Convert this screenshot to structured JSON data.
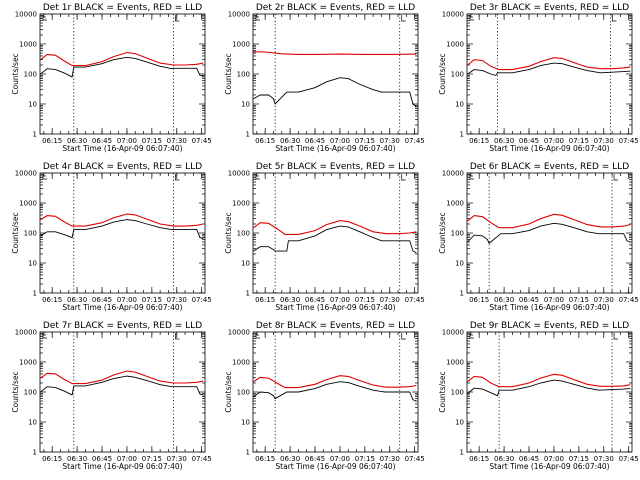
{
  "colors": {
    "events": "#000000",
    "lld": "#e00000",
    "background": "#ffffff"
  },
  "chart_data": [
    {
      "type": "line",
      "title": "Det 1r BLACK = Events, RED = LLD",
      "xlabel": "Start Time (16-Apr-09 06:07:40)",
      "ylabel": "Counts/sec",
      "y_scale": "log",
      "ylim": [
        1,
        10000
      ],
      "y_ticks": [
        "1",
        "10",
        "100",
        "1000",
        "10000"
      ],
      "x_ticks": [
        "06:15",
        "06:30",
        "06:45",
        "07:00",
        "07:15",
        "07:30",
        "07:45"
      ],
      "xlim": [
        "06:07:40",
        "07:47"
      ],
      "vertical_lines": [
        "06:28",
        "07:28"
      ],
      "series": [
        {
          "name": "BLACK = Events",
          "x": [
            "06:08",
            "06:12",
            "06:17",
            "06:22",
            "06:27",
            "06:28",
            "06:35",
            "06:45",
            "06:52",
            "07:00",
            "07:05",
            "07:12",
            "07:20",
            "07:27",
            "07:28",
            "07:35",
            "07:42",
            "07:44",
            "07:46"
          ],
          "y": [
            100,
            150,
            140,
            110,
            80,
            170,
            170,
            220,
            300,
            360,
            330,
            250,
            180,
            150,
            155,
            155,
            155,
            90,
            85
          ]
        },
        {
          "name": "RED = LLD",
          "x": [
            "06:08",
            "06:12",
            "06:17",
            "06:22",
            "06:27",
            "06:35",
            "06:45",
            "06:52",
            "07:00",
            "07:05",
            "07:12",
            "07:20",
            "07:28",
            "07:35",
            "07:42",
            "07:46"
          ],
          "y": [
            300,
            450,
            420,
            280,
            190,
            190,
            260,
            380,
            520,
            480,
            340,
            230,
            200,
            200,
            210,
            230
          ]
        }
      ]
    },
    {
      "type": "line",
      "title": "Det 2r BLACK = Events, RED = LLD",
      "xlabel": "Start Time (16-Apr-09 06:07:40)",
      "ylabel": "Counts/sec",
      "y_scale": "log",
      "ylim": [
        1,
        10000
      ],
      "y_ticks": [
        "1",
        "10",
        "100",
        "1000",
        "10000"
      ],
      "x_ticks": [
        "06:15",
        "06:30",
        "06:45",
        "07:00",
        "07:15",
        "07:30",
        "07:45"
      ],
      "xlim": [
        "06:07:40",
        "07:47"
      ],
      "vertical_lines": [
        "06:21",
        "07:36"
      ],
      "series": [
        {
          "name": "BLACK = Events",
          "x": [
            "06:08",
            "06:12",
            "06:17",
            "06:20",
            "06:21",
            "06:28",
            "06:35",
            "06:45",
            "06:52",
            "07:00",
            "07:05",
            "07:12",
            "07:20",
            "07:25",
            "07:26",
            "07:35",
            "07:42",
            "07:44",
            "07:46"
          ],
          "y": [
            15,
            20,
            20,
            15,
            10,
            25,
            25,
            35,
            55,
            75,
            70,
            45,
            30,
            25,
            25,
            25,
            25,
            10,
            8
          ]
        },
        {
          "name": "RED = LLD",
          "x": [
            "06:08",
            "06:15",
            "06:25",
            "06:35",
            "06:45",
            "07:00",
            "07:15",
            "07:30",
            "07:46"
          ],
          "y": [
            550,
            540,
            470,
            450,
            450,
            460,
            450,
            450,
            460
          ]
        }
      ]
    },
    {
      "type": "line",
      "title": "Det 3r BLACK = Events, RED = LLD",
      "xlabel": "Start Time (16-Apr-09 06:07:40)",
      "ylabel": "Counts/sec",
      "y_scale": "log",
      "ylim": [
        1,
        10000
      ],
      "y_ticks": [
        "1",
        "10",
        "100",
        "1000",
        "10000"
      ],
      "x_ticks": [
        "06:15",
        "06:30",
        "06:45",
        "07:00",
        "07:15",
        "07:30",
        "07:45"
      ],
      "xlim": [
        "06:07:40",
        "07:47"
      ],
      "vertical_lines": [
        "06:26",
        "07:34"
      ],
      "series": [
        {
          "name": "BLACK = Events",
          "x": [
            "06:08",
            "06:12",
            "06:17",
            "06:22",
            "06:25",
            "06:26",
            "06:35",
            "06:45",
            "06:52",
            "07:00",
            "07:05",
            "07:12",
            "07:20",
            "07:28",
            "07:35",
            "07:42",
            "07:46"
          ],
          "y": [
            100,
            140,
            130,
            100,
            90,
            110,
            110,
            140,
            190,
            230,
            220,
            170,
            130,
            110,
            115,
            120,
            125
          ]
        },
        {
          "name": "RED = LLD",
          "x": [
            "06:08",
            "06:12",
            "06:17",
            "06:22",
            "06:27",
            "06:35",
            "06:45",
            "06:52",
            "07:00",
            "07:05",
            "07:12",
            "07:20",
            "07:28",
            "07:35",
            "07:42",
            "07:46"
          ],
          "y": [
            200,
            300,
            280,
            180,
            140,
            140,
            180,
            260,
            350,
            330,
            240,
            170,
            150,
            150,
            160,
            170
          ]
        }
      ]
    },
    {
      "type": "line",
      "title": "Det 4r BLACK = Events, RED = LLD",
      "xlabel": "Start Time (16-Apr-09 06:07:40)",
      "ylabel": "Counts/sec",
      "y_scale": "log",
      "ylim": [
        1,
        10000
      ],
      "y_ticks": [
        "1",
        "10",
        "100",
        "1000",
        "10000"
      ],
      "x_ticks": [
        "06:15",
        "06:30",
        "06:45",
        "07:00",
        "07:15",
        "07:30",
        "07:45"
      ],
      "xlim": [
        "06:07:40",
        "07:47"
      ],
      "vertical_lines": [
        "06:28",
        "07:28"
      ],
      "series": [
        {
          "name": "BLACK = Events",
          "x": [
            "06:08",
            "06:12",
            "06:17",
            "06:22",
            "06:27",
            "06:28",
            "06:35",
            "06:45",
            "06:52",
            "07:00",
            "07:05",
            "07:12",
            "07:20",
            "07:27",
            "07:28",
            "07:35",
            "07:42",
            "07:44",
            "07:46"
          ],
          "y": [
            80,
            110,
            110,
            90,
            70,
            130,
            130,
            170,
            230,
            280,
            260,
            200,
            150,
            130,
            130,
            130,
            130,
            70,
            65
          ]
        },
        {
          "name": "RED = LLD",
          "x": [
            "06:08",
            "06:12",
            "06:17",
            "06:22",
            "06:27",
            "06:35",
            "06:45",
            "06:52",
            "07:00",
            "07:05",
            "07:12",
            "07:20",
            "07:28",
            "07:35",
            "07:42",
            "07:46"
          ],
          "y": [
            280,
            380,
            360,
            240,
            170,
            170,
            220,
            320,
            430,
            400,
            290,
            200,
            170,
            170,
            180,
            200
          ]
        }
      ]
    },
    {
      "type": "line",
      "title": "Det 5r BLACK = Events, RED = LLD",
      "xlabel": "Start Time (16-Apr-09 06:07:40)",
      "ylabel": "Counts/sec",
      "y_scale": "log",
      "ylim": [
        1,
        10000
      ],
      "y_ticks": [
        "1",
        "10",
        "100",
        "1000",
        "10000"
      ],
      "x_ticks": [
        "06:15",
        "06:30",
        "06:45",
        "07:00",
        "07:15",
        "07:30",
        "07:45"
      ],
      "xlim": [
        "06:07:40",
        "07:47"
      ],
      "vertical_lines": [
        "06:21",
        "07:36"
      ],
      "series": [
        {
          "name": "BLACK = Events",
          "x": [
            "06:08",
            "06:12",
            "06:17",
            "06:20",
            "06:21",
            "06:28",
            "06:29",
            "06:35",
            "06:45",
            "06:52",
            "07:00",
            "07:05",
            "07:12",
            "07:20",
            "07:25",
            "07:26",
            "07:35",
            "07:42",
            "07:44",
            "07:46"
          ],
          "y": [
            25,
            35,
            35,
            28,
            25,
            25,
            55,
            55,
            80,
            130,
            170,
            160,
            110,
            70,
            55,
            55,
            55,
            55,
            25,
            22
          ]
        },
        {
          "name": "RED = LLD",
          "x": [
            "06:08",
            "06:12",
            "06:17",
            "06:22",
            "06:27",
            "06:35",
            "06:45",
            "06:52",
            "07:00",
            "07:05",
            "07:12",
            "07:20",
            "07:28",
            "07:35",
            "07:42",
            "07:46"
          ],
          "y": [
            150,
            220,
            210,
            140,
            90,
            90,
            120,
            190,
            260,
            240,
            170,
            110,
            95,
            95,
            100,
            110
          ]
        }
      ]
    },
    {
      "type": "line",
      "title": "Det 6r BLACK = Events, RED = LLD",
      "xlabel": "Start Time (16-Apr-09 06:07:40)",
      "ylabel": "Counts/sec",
      "y_scale": "log",
      "ylim": [
        1,
        10000
      ],
      "y_ticks": [
        "1",
        "10",
        "100",
        "1000",
        "10000"
      ],
      "x_ticks": [
        "06:15",
        "06:30",
        "06:45",
        "07:00",
        "07:15",
        "07:30",
        "07:45"
      ],
      "xlim": [
        "06:07:40",
        "07:47"
      ],
      "vertical_lines": [
        "06:21",
        "07:35"
      ],
      "series": [
        {
          "name": "BLACK = Events",
          "x": [
            "06:08",
            "06:12",
            "06:17",
            "06:20",
            "06:21",
            "06:28",
            "06:35",
            "06:45",
            "06:52",
            "07:00",
            "07:05",
            "07:12",
            "07:20",
            "07:27",
            "07:28",
            "07:35",
            "07:42",
            "07:44",
            "07:46"
          ],
          "y": [
            50,
            85,
            80,
            60,
            45,
            95,
            95,
            120,
            170,
            210,
            195,
            150,
            110,
            95,
            95,
            95,
            95,
            55,
            50
          ]
        },
        {
          "name": "RED = LLD",
          "x": [
            "06:08",
            "06:12",
            "06:17",
            "06:22",
            "06:27",
            "06:35",
            "06:45",
            "06:52",
            "07:00",
            "07:05",
            "07:12",
            "07:20",
            "07:28",
            "07:35",
            "07:42",
            "07:46"
          ],
          "y": [
            250,
            380,
            350,
            220,
            150,
            150,
            200,
            300,
            420,
            390,
            280,
            190,
            160,
            160,
            170,
            190
          ]
        }
      ]
    },
    {
      "type": "line",
      "title": "Det 7r BLACK = Events, RED = LLD",
      "xlabel": "Start Time (16-Apr-09 06:07:40)",
      "ylabel": "Counts/sec",
      "y_scale": "log",
      "ylim": [
        1,
        10000
      ],
      "y_ticks": [
        "1",
        "10",
        "100",
        "1000",
        "10000"
      ],
      "x_ticks": [
        "06:15",
        "06:30",
        "06:45",
        "07:00",
        "07:15",
        "07:30",
        "07:45"
      ],
      "xlim": [
        "06:07:40",
        "07:47"
      ],
      "vertical_lines": [
        "06:28",
        "07:28"
      ],
      "series": [
        {
          "name": "BLACK = Events",
          "x": [
            "06:08",
            "06:12",
            "06:17",
            "06:22",
            "06:27",
            "06:28",
            "06:35",
            "06:45",
            "06:52",
            "07:00",
            "07:05",
            "07:12",
            "07:20",
            "07:27",
            "07:28",
            "07:35",
            "07:42",
            "07:44",
            "07:46"
          ],
          "y": [
            100,
            150,
            140,
            110,
            80,
            160,
            160,
            210,
            280,
            340,
            310,
            240,
            175,
            150,
            150,
            150,
            150,
            85,
            80
          ]
        },
        {
          "name": "RED = LLD",
          "x": [
            "06:08",
            "06:12",
            "06:17",
            "06:22",
            "06:27",
            "06:35",
            "06:45",
            "06:52",
            "07:00",
            "07:05",
            "07:12",
            "07:20",
            "07:28",
            "07:35",
            "07:42",
            "07:46"
          ],
          "y": [
            290,
            420,
            400,
            270,
            190,
            190,
            250,
            370,
            500,
            460,
            330,
            230,
            200,
            200,
            210,
            230
          ]
        }
      ]
    },
    {
      "type": "line",
      "title": "Det 8r BLACK = Events, RED = LLD",
      "xlabel": "Start Time (16-Apr-09 06:07:40)",
      "ylabel": "Counts/sec",
      "y_scale": "log",
      "ylim": [
        1,
        10000
      ],
      "y_ticks": [
        "1",
        "10",
        "100",
        "1000",
        "10000"
      ],
      "x_ticks": [
        "06:15",
        "06:30",
        "06:45",
        "07:00",
        "07:15",
        "07:30",
        "07:45"
      ],
      "xlim": [
        "06:07:40",
        "07:47"
      ],
      "vertical_lines": [
        "06:21",
        "07:36"
      ],
      "series": [
        {
          "name": "BLACK = Events",
          "x": [
            "06:08",
            "06:12",
            "06:17",
            "06:20",
            "06:21",
            "06:28",
            "06:35",
            "06:45",
            "06:52",
            "07:00",
            "07:05",
            "07:12",
            "07:20",
            "07:27",
            "07:28",
            "07:35",
            "07:42",
            "07:44",
            "07:46"
          ],
          "y": [
            70,
            100,
            95,
            75,
            60,
            100,
            100,
            130,
            180,
            220,
            205,
            155,
            115,
            100,
            100,
            100,
            100,
            55,
            50
          ]
        },
        {
          "name": "RED = LLD",
          "x": [
            "06:08",
            "06:12",
            "06:17",
            "06:22",
            "06:27",
            "06:35",
            "06:45",
            "06:52",
            "07:00",
            "07:05",
            "07:12",
            "07:20",
            "07:28",
            "07:35",
            "07:42",
            "07:46"
          ],
          "y": [
            220,
            310,
            290,
            200,
            140,
            140,
            180,
            260,
            350,
            330,
            240,
            170,
            145,
            145,
            150,
            165
          ]
        }
      ]
    },
    {
      "type": "line",
      "title": "Det 9r BLACK = Events, RED = LLD",
      "xlabel": "Start Time (16-Apr-09 06:07:40)",
      "ylabel": "Counts/sec",
      "y_scale": "log",
      "ylim": [
        1,
        10000
      ],
      "y_ticks": [
        "1",
        "10",
        "100",
        "1000",
        "10000"
      ],
      "x_ticks": [
        "06:15",
        "06:30",
        "06:45",
        "07:00",
        "07:15",
        "07:30",
        "07:45"
      ],
      "xlim": [
        "06:07:40",
        "07:47"
      ],
      "vertical_lines": [
        "06:27",
        "07:35"
      ],
      "series": [
        {
          "name": "BLACK = Events",
          "x": [
            "06:08",
            "06:12",
            "06:17",
            "06:22",
            "06:26",
            "06:27",
            "06:35",
            "06:45",
            "06:52",
            "07:00",
            "07:05",
            "07:12",
            "07:20",
            "07:27",
            "07:35",
            "07:42",
            "07:46"
          ],
          "y": [
            90,
            135,
            125,
            95,
            75,
            115,
            115,
            150,
            200,
            250,
            230,
            180,
            135,
            115,
            120,
            125,
            130
          ]
        },
        {
          "name": "RED = LLD",
          "x": [
            "06:08",
            "06:12",
            "06:17",
            "06:22",
            "06:27",
            "06:35",
            "06:45",
            "06:52",
            "07:00",
            "07:05",
            "07:12",
            "07:20",
            "07:28",
            "07:35",
            "07:42",
            "07:46"
          ],
          "y": [
            220,
            330,
            310,
            200,
            150,
            150,
            200,
            290,
            390,
            360,
            260,
            180,
            155,
            155,
            160,
            175
          ]
        }
      ]
    }
  ]
}
